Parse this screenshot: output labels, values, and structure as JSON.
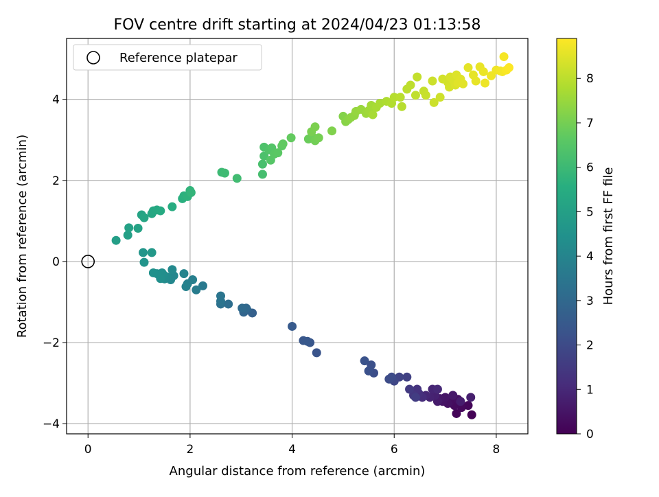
{
  "chart_data": {
    "type": "scatter",
    "title": "FOV centre drift starting at 2024/04/23 01:13:58",
    "xlabel": "Angular distance from reference (arcmin)",
    "ylabel": "Rotation from reference (arcmin)",
    "xlim": [
      -0.42,
      8.62
    ],
    "ylim": [
      -4.25,
      5.5
    ],
    "x_ticks": [
      0,
      2,
      4,
      6,
      8
    ],
    "y_ticks": [
      -4,
      -2,
      0,
      2,
      4
    ],
    "grid": true,
    "legend": {
      "position": "upper left",
      "entries": [
        "Reference platepar"
      ]
    },
    "reference_point": {
      "x": 0,
      "y": 0
    },
    "colorbar": {
      "label": "Hours from first FF file",
      "range": [
        0,
        8.9
      ],
      "ticks": [
        0,
        1,
        2,
        3,
        4,
        5,
        6,
        7,
        8
      ],
      "colormap": "viridis"
    },
    "series": [
      {
        "points": [
          [
            7.52,
            -3.78,
            0.05
          ],
          [
            7.22,
            -3.75,
            0.1
          ],
          [
            7.45,
            -3.55,
            0.15
          ],
          [
            7.32,
            -3.6,
            0.2
          ],
          [
            7.18,
            -3.55,
            0.25
          ],
          [
            7.1,
            -3.45,
            0.3
          ],
          [
            7.25,
            -3.4,
            0.35
          ],
          [
            7.05,
            -3.5,
            0.4
          ],
          [
            6.95,
            -3.45,
            0.45
          ],
          [
            7.0,
            -3.35,
            0.5
          ],
          [
            6.9,
            -3.38,
            0.55
          ],
          [
            7.15,
            -3.3,
            0.6
          ],
          [
            6.85,
            -3.45,
            0.65
          ],
          [
            7.3,
            -3.45,
            0.7
          ],
          [
            7.5,
            -3.35,
            0.75
          ],
          [
            6.8,
            -3.3,
            0.8
          ],
          [
            6.7,
            -3.35,
            0.85
          ],
          [
            6.75,
            -3.15,
            0.9
          ],
          [
            6.62,
            -3.3,
            0.95
          ],
          [
            6.85,
            -3.15,
            1.0
          ],
          [
            6.55,
            -3.35,
            1.1
          ],
          [
            6.48,
            -3.25,
            1.2
          ],
          [
            6.45,
            -3.15,
            1.3
          ],
          [
            6.38,
            -3.3,
            1.4
          ],
          [
            6.3,
            -3.15,
            1.5
          ],
          [
            6.42,
            -3.35,
            1.6
          ],
          [
            6.25,
            -2.85,
            1.7
          ],
          [
            6.1,
            -2.85,
            1.8
          ],
          [
            6.0,
            -2.95,
            1.9
          ],
          [
            5.95,
            -2.85,
            2.0
          ],
          [
            5.9,
            -2.9,
            2.05
          ],
          [
            5.6,
            -2.75,
            2.1
          ],
          [
            5.55,
            -2.55,
            2.15
          ],
          [
            5.5,
            -2.7,
            2.2
          ],
          [
            5.42,
            -2.45,
            2.25
          ],
          [
            4.48,
            -2.25,
            2.3
          ],
          [
            4.35,
            -2.0,
            2.35
          ],
          [
            4.22,
            -1.95,
            2.4
          ],
          [
            4.3,
            -1.97,
            2.45
          ],
          [
            4.0,
            -1.6,
            2.5
          ],
          [
            3.22,
            -1.27,
            2.7
          ],
          [
            3.12,
            -1.2,
            2.8
          ],
          [
            3.05,
            -1.25,
            2.9
          ],
          [
            3.1,
            -1.15,
            3.0
          ],
          [
            3.02,
            -1.15,
            3.05
          ],
          [
            2.75,
            -1.05,
            3.2
          ],
          [
            2.6,
            -1.05,
            3.3
          ],
          [
            2.6,
            -0.98,
            3.4
          ],
          [
            2.6,
            -0.85,
            3.45
          ],
          [
            2.25,
            -0.6,
            3.6
          ],
          [
            2.12,
            -0.7,
            3.7
          ],
          [
            2.05,
            -0.45,
            3.8
          ],
          [
            1.95,
            -0.55,
            3.85
          ],
          [
            1.92,
            -0.62,
            3.9
          ],
          [
            1.88,
            -0.3,
            4.0
          ],
          [
            1.68,
            -0.35,
            4.05
          ],
          [
            1.62,
            -0.45,
            4.1
          ],
          [
            1.65,
            -0.2,
            4.15
          ],
          [
            1.55,
            -0.38,
            4.2
          ],
          [
            1.5,
            -0.43,
            4.25
          ],
          [
            1.48,
            -0.33,
            4.3
          ],
          [
            1.45,
            -0.28,
            4.35
          ],
          [
            1.42,
            -0.42,
            4.38
          ],
          [
            1.35,
            -0.3,
            4.42
          ],
          [
            1.28,
            -0.28,
            4.45
          ],
          [
            1.1,
            -0.02,
            4.55
          ],
          [
            1.08,
            0.22,
            4.6
          ],
          [
            1.25,
            0.22,
            4.7
          ],
          [
            0.55,
            0.52,
            4.95
          ],
          [
            0.78,
            0.65,
            5.0
          ],
          [
            0.8,
            0.83,
            5.05
          ],
          [
            0.98,
            0.82,
            5.1
          ],
          [
            1.05,
            1.15,
            5.15
          ],
          [
            1.1,
            1.08,
            5.2
          ],
          [
            1.25,
            1.18,
            5.25
          ],
          [
            1.28,
            1.25,
            5.3
          ],
          [
            1.35,
            1.27,
            5.35
          ],
          [
            1.42,
            1.25,
            5.4
          ],
          [
            1.65,
            1.35,
            5.5
          ],
          [
            1.85,
            1.55,
            5.6
          ],
          [
            1.88,
            1.62,
            5.65
          ],
          [
            1.95,
            1.6,
            5.7
          ],
          [
            2.0,
            1.75,
            5.75
          ],
          [
            2.02,
            1.7,
            5.8
          ],
          [
            2.62,
            2.2,
            6.0
          ],
          [
            2.68,
            2.18,
            6.05
          ],
          [
            2.92,
            2.05,
            6.1
          ],
          [
            3.42,
            2.15,
            6.2
          ],
          [
            3.42,
            2.4,
            6.25
          ],
          [
            3.45,
            2.6,
            6.3
          ],
          [
            3.45,
            2.82,
            6.35
          ],
          [
            3.55,
            2.75,
            6.4
          ],
          [
            3.6,
            2.8,
            6.45
          ],
          [
            3.58,
            2.5,
            6.5
          ],
          [
            3.65,
            2.65,
            6.55
          ],
          [
            3.72,
            2.68,
            6.6
          ],
          [
            3.8,
            2.85,
            6.65
          ],
          [
            3.82,
            2.9,
            6.7
          ],
          [
            3.98,
            3.05,
            6.75
          ],
          [
            4.32,
            3.02,
            6.85
          ],
          [
            4.42,
            3.05,
            6.9
          ],
          [
            4.45,
            2.98,
            6.95
          ],
          [
            4.52,
            3.05,
            7.0
          ],
          [
            4.38,
            3.2,
            7.05
          ],
          [
            4.45,
            3.32,
            7.1
          ],
          [
            4.78,
            3.22,
            7.15
          ],
          [
            5.0,
            3.58,
            7.2
          ],
          [
            5.05,
            3.45,
            7.25
          ],
          [
            5.1,
            3.5,
            7.3
          ],
          [
            5.15,
            3.55,
            7.35
          ],
          [
            5.22,
            3.6,
            7.4
          ],
          [
            5.25,
            3.7,
            7.45
          ],
          [
            5.35,
            3.75,
            7.5
          ],
          [
            5.45,
            3.65,
            7.55
          ],
          [
            5.5,
            3.72,
            7.6
          ],
          [
            5.55,
            3.85,
            7.65
          ],
          [
            5.58,
            3.62,
            7.7
          ],
          [
            5.65,
            3.8,
            7.72
          ],
          [
            5.72,
            3.9,
            7.75
          ],
          [
            5.85,
            3.95,
            7.8
          ],
          [
            5.95,
            3.9,
            7.85
          ],
          [
            6.0,
            4.05,
            7.9
          ],
          [
            6.15,
            3.82,
            7.92
          ],
          [
            6.12,
            4.05,
            7.95
          ],
          [
            6.25,
            4.25,
            8.0
          ],
          [
            6.32,
            4.35,
            8.02
          ],
          [
            6.42,
            4.1,
            8.05
          ],
          [
            6.45,
            4.55,
            8.1
          ],
          [
            6.58,
            4.2,
            8.12
          ],
          [
            6.62,
            4.1,
            8.15
          ],
          [
            6.78,
            3.92,
            8.2
          ],
          [
            6.75,
            4.45,
            8.22
          ],
          [
            6.9,
            4.05,
            8.25
          ],
          [
            6.95,
            4.5,
            8.3
          ],
          [
            7.05,
            4.42,
            8.32
          ],
          [
            7.08,
            4.3,
            8.35
          ],
          [
            7.1,
            4.55,
            8.38
          ],
          [
            7.15,
            4.48,
            8.4
          ],
          [
            7.2,
            4.35,
            8.42
          ],
          [
            7.22,
            4.6,
            8.45
          ],
          [
            7.3,
            4.5,
            8.48
          ],
          [
            7.25,
            4.4,
            8.5
          ],
          [
            7.35,
            4.38,
            8.52
          ],
          [
            7.45,
            4.78,
            8.55
          ],
          [
            7.55,
            4.6,
            8.58
          ],
          [
            7.6,
            4.45,
            8.6
          ],
          [
            7.68,
            4.8,
            8.62
          ],
          [
            7.75,
            4.68,
            8.65
          ],
          [
            7.78,
            4.4,
            8.68
          ],
          [
            7.9,
            4.58,
            8.7
          ],
          [
            8.0,
            4.72,
            8.72
          ],
          [
            8.08,
            4.7,
            8.75
          ],
          [
            8.12,
            4.68,
            8.78
          ],
          [
            8.15,
            5.05,
            8.8
          ],
          [
            8.2,
            4.72,
            8.85
          ],
          [
            8.25,
            4.78,
            8.88
          ]
        ]
      }
    ]
  }
}
